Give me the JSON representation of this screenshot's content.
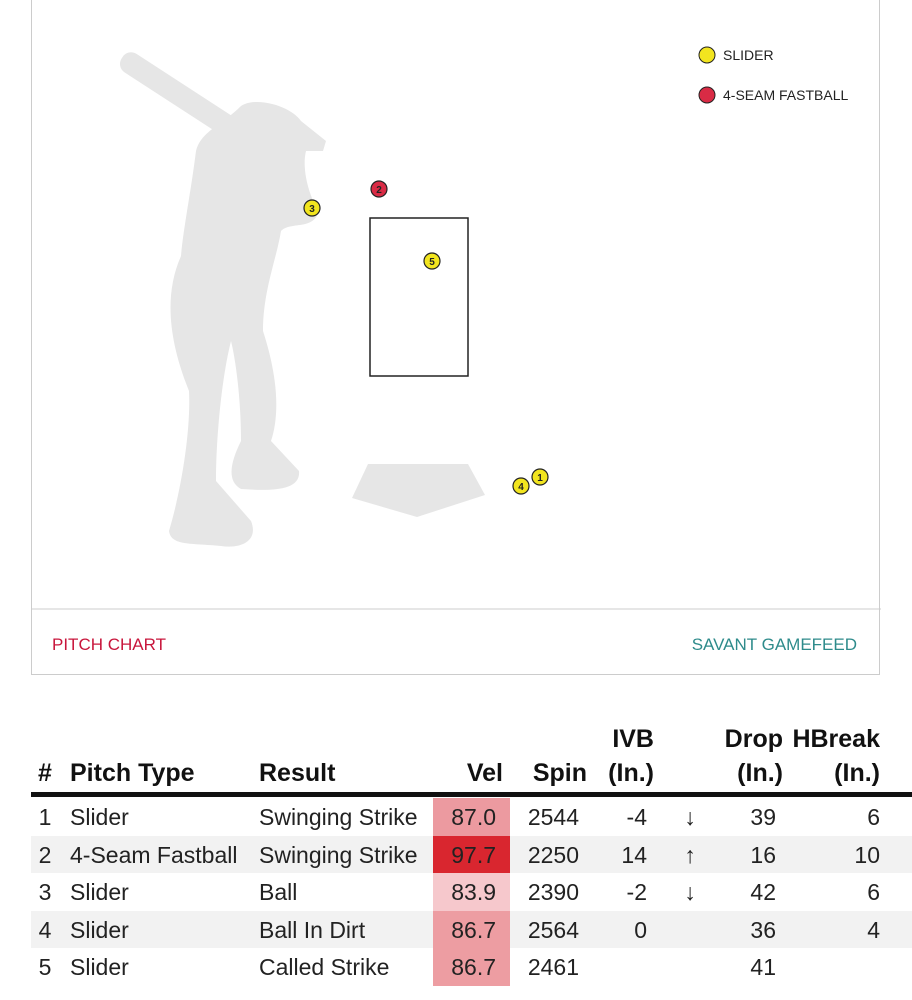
{
  "pitch_chart": {
    "legend": [
      {
        "label": "SLIDER",
        "color": "#f2e51f"
      },
      {
        "label": "4-SEAM FASTBALL",
        "color": "#d92b45"
      }
    ],
    "pitches": [
      {
        "label": "1",
        "color": "#f2e51f"
      },
      {
        "label": "2",
        "color": "#d92b45"
      },
      {
        "label": "3",
        "color": "#f2e51f"
      },
      {
        "label": "4",
        "color": "#f2e51f"
      },
      {
        "label": "5",
        "color": "#f2e51f"
      }
    ],
    "footer_left": "PITCH CHART",
    "footer_right": "SAVANT GAMEFEED"
  },
  "table": {
    "headers": [
      [
        "#"
      ],
      [
        "Pitch Type"
      ],
      [
        "Result"
      ],
      [
        "Vel"
      ],
      [
        "Spin"
      ],
      [
        "IVB",
        "(In.)"
      ],
      [
        "Drop",
        "(In.)"
      ],
      [
        "HBreak",
        "(In.)"
      ]
    ],
    "rows": [
      {
        "num": "1",
        "pitch_type": "Slider",
        "result": "Swinging Strike",
        "vel": "87.0",
        "vel_color": "#ec9aa0",
        "spin": "2544",
        "ivb": "-4",
        "arrow": "↓",
        "drop": "39",
        "hbreak": "6"
      },
      {
        "num": "2",
        "pitch_type": "4-Seam Fastball",
        "result": "Swinging Strike",
        "vel": "97.7",
        "vel_color": "#d9262f",
        "spin": "2250",
        "ivb": "14",
        "arrow": "↑",
        "drop": "16",
        "hbreak": "10"
      },
      {
        "num": "3",
        "pitch_type": "Slider",
        "result": "Ball",
        "vel": "83.9",
        "vel_color": "#f6c8cc",
        "spin": "2390",
        "ivb": "-2",
        "arrow": "↓",
        "drop": "42",
        "hbreak": "6"
      },
      {
        "num": "4",
        "pitch_type": "Slider",
        "result": "Ball In Dirt",
        "vel": "86.7",
        "vel_color": "#ed9da2",
        "spin": "2564",
        "ivb": "0",
        "drop": "36",
        "hbreak": "4"
      },
      {
        "num": "5",
        "pitch_type": "Slider",
        "result": "Called Strike",
        "vel": "86.7",
        "vel_color": "#ed9da2",
        "spin": "2461",
        "drop": "41"
      }
    ]
  }
}
